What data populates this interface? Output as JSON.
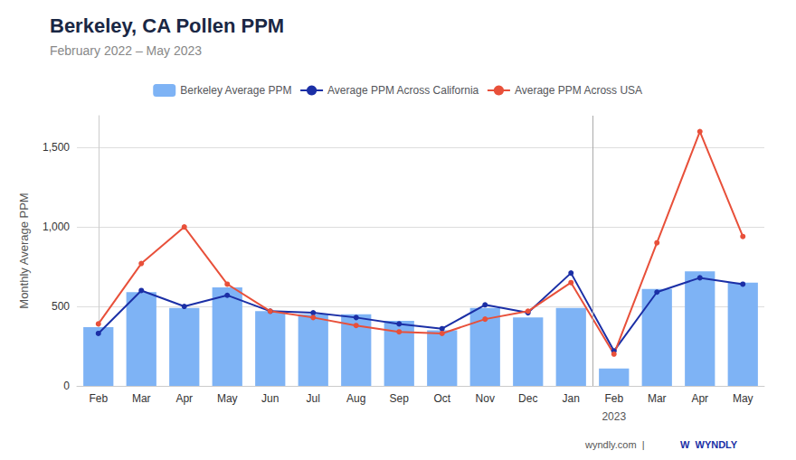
{
  "chart_data": {
    "type": "bar",
    "title": "Berkeley, CA Pollen PPM",
    "subtitle": "February 2022 – May 2023",
    "ylabel": "Monthly Average PPM",
    "categories": [
      "Feb",
      "Mar",
      "Apr",
      "May",
      "Jun",
      "Jul",
      "Aug",
      "Sep",
      "Oct",
      "Nov",
      "Dec",
      "Jan",
      "Feb",
      "Mar",
      "Apr",
      "May"
    ],
    "series": [
      {
        "name": "Berkeley Average PPM",
        "type": "bar",
        "color": "#7EB3F5",
        "values": [
          370,
          590,
          490,
          620,
          470,
          450,
          450,
          410,
          350,
          490,
          430,
          490,
          110,
          610,
          720,
          650
        ]
      },
      {
        "name": "Average PPM Across California",
        "type": "line",
        "color": "#1B2FA6",
        "marker": "circle",
        "values": [
          330,
          600,
          500,
          570,
          470,
          460,
          430,
          390,
          360,
          510,
          460,
          710,
          220,
          590,
          680,
          640
        ]
      },
      {
        "name": "Average PPM Across USA",
        "type": "line",
        "color": "#E8503A",
        "marker": "circle",
        "values": [
          390,
          770,
          1000,
          640,
          470,
          430,
          380,
          340,
          330,
          420,
          470,
          650,
          200,
          900,
          1600,
          940
        ]
      }
    ],
    "ylim": [
      0,
      1700
    ],
    "yticks": [
      0,
      500,
      {
        "value": 1000,
        "label": "1,000"
      },
      {
        "value": 1500,
        "label": "1,500"
      }
    ],
    "grid": true,
    "legend": "top",
    "year_boundary": 11.5,
    "year_label": "2023",
    "footer": [
      {
        "text": "wyndly.com  |"
      },
      {
        "text": "W  WYNDLY",
        "color": "#1B2FA6"
      }
    ]
  }
}
